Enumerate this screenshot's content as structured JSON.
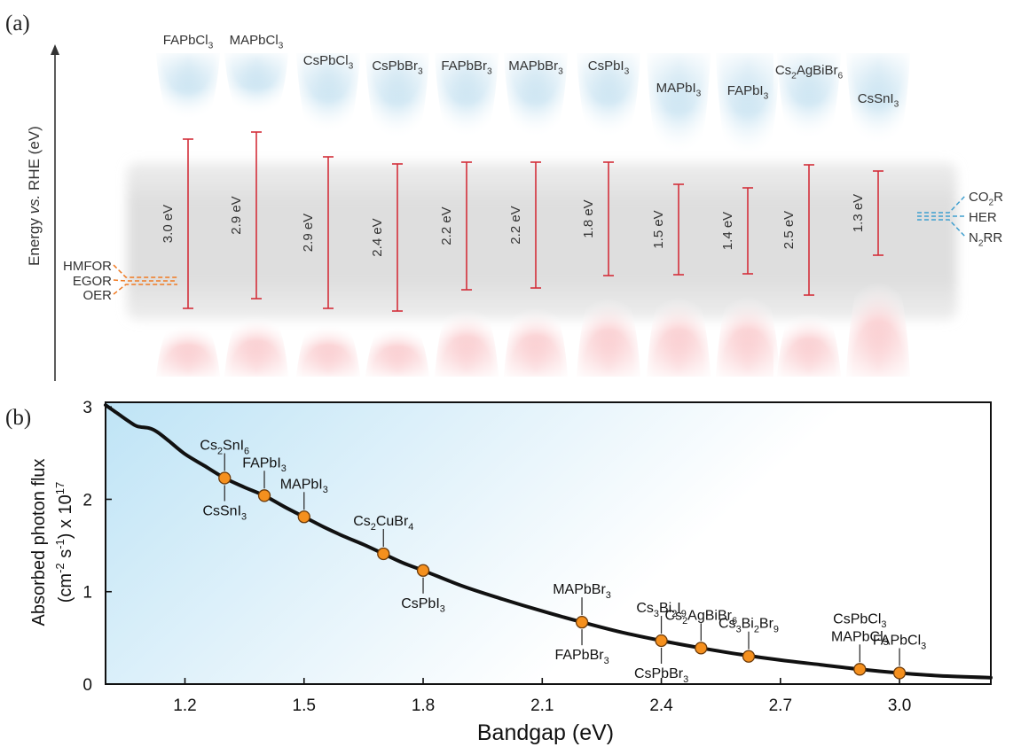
{
  "panels": {
    "a_label": "(a)",
    "b_label": "(b)"
  },
  "panel_a": {
    "ylabel_parts": [
      "Energy ",
      "vs.",
      " RHE (eV)"
    ],
    "materials": [
      {
        "name": [
          "FAPbCl",
          "3",
          ""
        ],
        "gap": "3.0 eV"
      },
      {
        "name": [
          "MAPbCl",
          "3",
          ""
        ],
        "gap": "2.9 eV"
      },
      {
        "name": [
          "CsPbCl",
          "3",
          ""
        ],
        "gap": "2.9 eV"
      },
      {
        "name": [
          "CsPbBr",
          "3",
          ""
        ],
        "gap": "2.4 eV"
      },
      {
        "name": [
          "FAPbBr",
          "3",
          ""
        ],
        "gap": "2.2 eV"
      },
      {
        "name": [
          "MAPbBr",
          "3",
          ""
        ],
        "gap": "2.2 eV"
      },
      {
        "name": [
          "CsPbI",
          "3",
          ""
        ],
        "gap": "1.8 eV"
      },
      {
        "name": [
          "MAPbI",
          "3",
          ""
        ],
        "gap": "1.5 eV"
      },
      {
        "name": [
          "FAPbI",
          "3",
          ""
        ],
        "gap": "1.4 eV"
      },
      {
        "name": [
          "Cs",
          "2",
          "AgBiBr",
          "6",
          ""
        ],
        "gap": "2.5 eV"
      },
      {
        "name": [
          "CsSnI",
          "3",
          ""
        ],
        "gap": "1.3 eV"
      }
    ],
    "left_reactions": [
      "HMFOR",
      "EGOR",
      "OER"
    ],
    "right_reactions": [
      [
        "CO",
        "2",
        "R"
      ],
      [
        "HER"
      ],
      [
        "N",
        "2",
        "RR"
      ]
    ],
    "colors": {
      "bracket": "#d32f3a",
      "oxidation": "#f07a22",
      "reduction": "#3f9fcf",
      "band": "#d9d9d9"
    }
  },
  "chart_data": {
    "type": "line",
    "xlabel": "Bandgap (eV)",
    "ylabel": [
      "Absorbed photon flux",
      "(cm",
      "-2",
      " s",
      "-1",
      ") x 10",
      "17"
    ],
    "xlim": [
      1.0,
      3.23
    ],
    "ylim": [
      0,
      3.05
    ],
    "xticks": [
      1.2,
      1.5,
      1.8,
      2.1,
      2.4,
      2.7,
      3.0
    ],
    "yticks": [
      0,
      1,
      2,
      3
    ],
    "series": [
      {
        "x": [
          1.0,
          1.03,
          1.06,
          1.08,
          1.11,
          1.13,
          1.16,
          1.2,
          1.25,
          1.3,
          1.35,
          1.4,
          1.45,
          1.5,
          1.55,
          1.6,
          1.65,
          1.7,
          1.75,
          1.8,
          1.9,
          2.0,
          2.1,
          2.2,
          2.3,
          2.4,
          2.5,
          2.6,
          2.7,
          2.8,
          2.9,
          3.0,
          3.1,
          3.23
        ],
        "y": [
          3.02,
          2.93,
          2.84,
          2.79,
          2.77,
          2.73,
          2.63,
          2.49,
          2.36,
          2.23,
          2.13,
          2.04,
          1.92,
          1.81,
          1.7,
          1.6,
          1.51,
          1.41,
          1.31,
          1.23,
          1.06,
          0.92,
          0.79,
          0.67,
          0.56,
          0.47,
          0.39,
          0.32,
          0.26,
          0.21,
          0.16,
          0.12,
          0.09,
          0.07
        ]
      }
    ],
    "points": [
      {
        "x": 1.3,
        "y": 2.23,
        "above": [
          [
            "Cs",
            "2",
            "SnI",
            "6",
            ""
          ]
        ],
        "below": [
          [
            "CsSnI",
            "3",
            ""
          ]
        ]
      },
      {
        "x": 1.4,
        "y": 2.04,
        "above": [
          [
            "FAPbI",
            "3",
            ""
          ]
        ],
        "below": []
      },
      {
        "x": 1.5,
        "y": 1.81,
        "above": [
          [
            "MAPbI",
            "3",
            ""
          ]
        ],
        "below": []
      },
      {
        "x": 1.7,
        "y": 1.41,
        "above": [
          [
            "Cs",
            "2",
            "CuBr",
            "4",
            ""
          ]
        ],
        "below": []
      },
      {
        "x": 1.8,
        "y": 1.23,
        "above": [],
        "below": [
          [
            "CsPbI",
            "3",
            ""
          ]
        ]
      },
      {
        "x": 2.2,
        "y": 0.67,
        "above": [
          [
            "MAPbBr",
            "3",
            ""
          ]
        ],
        "below": [
          [
            "FAPbBr",
            "3",
            ""
          ]
        ]
      },
      {
        "x": 2.4,
        "y": 0.47,
        "above": [
          [
            "Cs",
            "3",
            "Bi",
            "2",
            "I",
            "9",
            ""
          ]
        ],
        "below": [
          [
            "CsPbBr",
            "3",
            ""
          ]
        ]
      },
      {
        "x": 2.5,
        "y": 0.39,
        "above": [
          [
            "Cs",
            "2",
            "AgBiBr",
            "6",
            ""
          ]
        ],
        "below": []
      },
      {
        "x": 2.62,
        "y": 0.3,
        "above": [
          [
            "Cs",
            "3",
            "Bi",
            "2",
            "Br",
            "9",
            ""
          ]
        ],
        "below": []
      },
      {
        "x": 2.9,
        "y": 0.16,
        "above": [
          [
            "CsPbCl",
            "3",
            ""
          ],
          [
            "MAPbCl",
            "3",
            ""
          ]
        ],
        "below": []
      },
      {
        "x": 3.0,
        "y": 0.12,
        "above": [
          [
            "FAPbCl",
            "3",
            ""
          ]
        ],
        "below": []
      }
    ],
    "colors": {
      "curve": "#111111",
      "point_fill": "#f5901e",
      "point_stroke": "#6b3a0a",
      "background_tint": "#bfe4f6"
    }
  }
}
